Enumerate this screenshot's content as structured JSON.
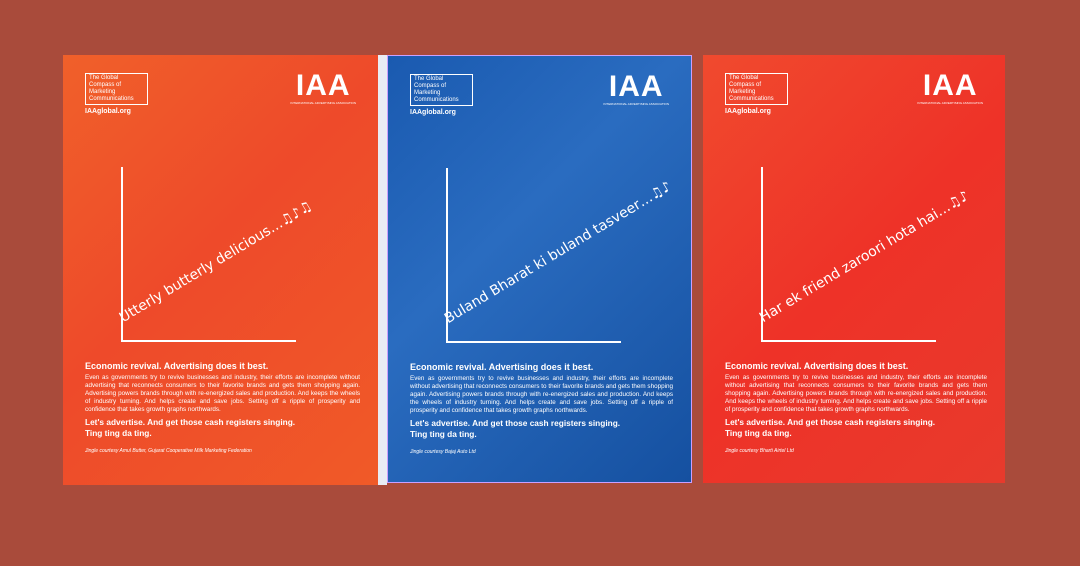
{
  "colors": {
    "background": "#a94b3b",
    "orange": "#f0602a",
    "blue": "#1a5ab0",
    "red": "#ee3228"
  },
  "posters": [
    {
      "tagline": "The Global Compass of Marketing Communications",
      "url": "IAAglobal.org",
      "logo": "IAA",
      "logo_sub": "INTERNATIONAL ADVERTISING ASSOCIATION",
      "slogan": "Utterly butterly delicious…♫♪♫",
      "headline": "Economic revival. Advertising does it best.",
      "copy": "Even as governments try to revive businesses and industry, their efforts are incomplete without advertising that reconnects consumers to their favorite brands and gets them shopping again. Advertising powers brands through with re-energized sales and production. And keeps the wheels of industry turning. And helps create and save jobs. Setting off a ripple of prosperity and confidence that takes growth graphs northwards.",
      "cta1": "Let's advertise. And get those cash registers singing.",
      "cta2": "Ting ting da ting.",
      "credit": "Jingle courtesy Amul Butter, Gujarat Cooperative Milk Marketing Federation"
    },
    {
      "tagline": "The Global Compass of Marketing Communications",
      "url": "IAAglobal.org",
      "logo": "IAA",
      "logo_sub": "INTERNATIONAL ADVERTISING ASSOCIATION",
      "slogan": "Buland Bharat ki buland tasveer…♫♪",
      "headline": "Economic revival. Advertising does it best.",
      "copy": "Even as governments try to revive businesses and industry, their efforts are incomplete without advertising that reconnects consumers to their favorite brands and gets them shopping again. Advertising powers brands through with re-energized sales and production. And keeps the wheels of industry turning. And helps create and save jobs. Setting off a ripple of prosperity and confidence that takes growth graphs northwards.",
      "cta1": "Let's advertise. And get those cash registers singing.",
      "cta2": "Ting ting da ting.",
      "credit": "Jingle courtesy Bajaj Auto Ltd"
    },
    {
      "tagline": "The Global Compass of Marketing Communications",
      "url": "IAAglobal.org",
      "logo": "IAA",
      "logo_sub": "INTERNATIONAL ADVERTISING ASSOCIATION",
      "slogan": "Har ek friend zaroori hota hai…♫♪",
      "headline": "Economic revival. Advertising does it best.",
      "copy": "Even as governments try to revive businesses and industry, their efforts are incomplete without advertising that reconnects consumers to their favorite brands and gets them shopping again. Advertising powers brands through with re-energized sales and production. And keeps the wheels of industry turning. And helps create and save jobs. Setting off a ripple of prosperity and confidence that takes growth graphs northwards.",
      "cta1": "Let's advertise. And get those cash registers singing.",
      "cta2": "Ting ting da ting.",
      "credit": "Jingle courtesy Bharti Airtel Ltd"
    }
  ]
}
